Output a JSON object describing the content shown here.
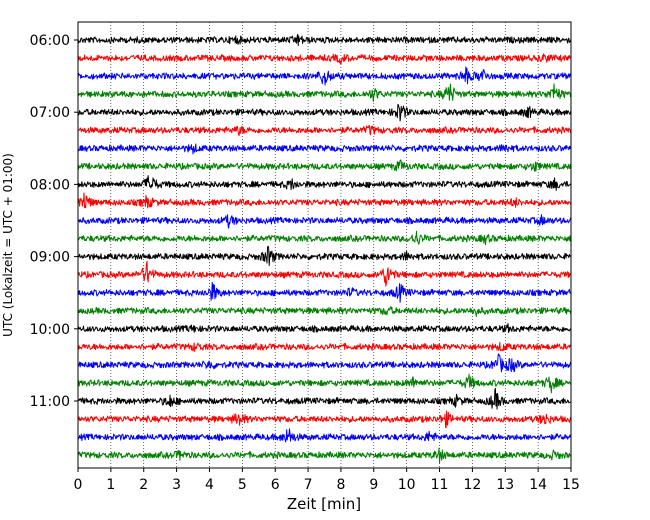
{
  "chart_data": {
    "type": "line",
    "title": "",
    "xlabel": "Zeit  [min]",
    "ylabel": "UTC (Lokalzeit = UTC + 01:00)",
    "xlim": [
      0,
      15
    ],
    "x_ticks": [
      0,
      1,
      2,
      3,
      4,
      5,
      6,
      7,
      8,
      9,
      10,
      11,
      12,
      13,
      14,
      15
    ],
    "x_grid": "dotted vertical lines at every minute",
    "trace_minutes": 15,
    "traces_per_hour": 4,
    "color_cycle": [
      "#000000",
      "#ff0000",
      "#0000ff",
      "#008000"
    ],
    "y_ticks": [
      "06:00",
      "07:00",
      "08:00",
      "09:00",
      "10:00",
      "11:00"
    ],
    "traces": [
      {
        "start": "06:00",
        "color": "#000000",
        "events": [
          {
            "t": 6.7,
            "amp": 0.4
          },
          {
            "t": 4.8,
            "amp": 0.25
          }
        ]
      },
      {
        "start": "06:15",
        "color": "#ff0000",
        "events": [
          {
            "t": 8.0,
            "amp": 0.35
          },
          {
            "t": 14.2,
            "amp": 0.3
          }
        ]
      },
      {
        "start": "06:30",
        "color": "#0000ff",
        "events": [
          {
            "t": 7.5,
            "amp": 0.9
          },
          {
            "t": 11.8,
            "amp": 0.7
          },
          {
            "t": 12.3,
            "amp": 0.6
          }
        ]
      },
      {
        "start": "06:45",
        "color": "#008000",
        "events": [
          {
            "t": 11.3,
            "amp": 1.0
          },
          {
            "t": 14.5,
            "amp": 0.9
          },
          {
            "t": 9.0,
            "amp": 0.5
          }
        ]
      },
      {
        "start": "07:00",
        "color": "#000000",
        "events": [
          {
            "t": 9.8,
            "amp": 0.9
          },
          {
            "t": 13.7,
            "amp": 0.4
          }
        ]
      },
      {
        "start": "07:15",
        "color": "#ff0000",
        "events": [
          {
            "t": 4.9,
            "amp": 0.3
          },
          {
            "t": 8.9,
            "amp": 0.3
          }
        ]
      },
      {
        "start": "07:30",
        "color": "#0000ff",
        "events": [
          {
            "t": 3.5,
            "amp": 0.3
          },
          {
            "t": 13.0,
            "amp": 0.3
          }
        ]
      },
      {
        "start": "07:45",
        "color": "#008000",
        "events": [
          {
            "t": 9.8,
            "amp": 0.4
          },
          {
            "t": 13.9,
            "amp": 0.35
          }
        ]
      },
      {
        "start": "08:00",
        "color": "#000000",
        "events": [
          {
            "t": 2.2,
            "amp": 1.0
          },
          {
            "t": 6.5,
            "amp": 0.4
          },
          {
            "t": 14.5,
            "amp": 0.4
          }
        ]
      },
      {
        "start": "08:15",
        "color": "#ff0000",
        "events": [
          {
            "t": 0.2,
            "amp": 0.9
          },
          {
            "t": 2.1,
            "amp": 0.5
          },
          {
            "t": 13.3,
            "amp": 0.3
          }
        ]
      },
      {
        "start": "08:30",
        "color": "#0000ff",
        "events": [
          {
            "t": 4.6,
            "amp": 0.5
          },
          {
            "t": 14.1,
            "amp": 0.3
          }
        ]
      },
      {
        "start": "08:45",
        "color": "#008000",
        "events": [
          {
            "t": 10.3,
            "amp": 0.6
          },
          {
            "t": 12.4,
            "amp": 0.3
          }
        ]
      },
      {
        "start": "09:00",
        "color": "#000000",
        "events": [
          {
            "t": 5.8,
            "amp": 0.9
          },
          {
            "t": 10.0,
            "amp": 0.3
          }
        ]
      },
      {
        "start": "09:15",
        "color": "#ff0000",
        "events": [
          {
            "t": 2.1,
            "amp": 1.0
          },
          {
            "t": 9.4,
            "amp": 1.1
          }
        ]
      },
      {
        "start": "09:30",
        "color": "#0000ff",
        "events": [
          {
            "t": 4.1,
            "amp": 0.8
          },
          {
            "t": 9.8,
            "amp": 0.7
          },
          {
            "t": 8.3,
            "amp": 0.3
          }
        ]
      },
      {
        "start": "09:45",
        "color": "#008000",
        "events": [
          {
            "t": 9.4,
            "amp": 0.3
          },
          {
            "t": 12.1,
            "amp": 0.3
          }
        ]
      },
      {
        "start": "10:00",
        "color": "#000000",
        "events": [
          {
            "t": 3.5,
            "amp": 0.2
          },
          {
            "t": 13.1,
            "amp": 0.2
          }
        ]
      },
      {
        "start": "10:15",
        "color": "#ff0000",
        "events": [
          {
            "t": 3.6,
            "amp": 0.3
          },
          {
            "t": 12.9,
            "amp": 0.3
          }
        ]
      },
      {
        "start": "10:30",
        "color": "#0000ff",
        "events": [
          {
            "t": 12.8,
            "amp": 0.8
          },
          {
            "t": 13.2,
            "amp": 0.6
          },
          {
            "t": 4.0,
            "amp": 0.3
          }
        ]
      },
      {
        "start": "10:45",
        "color": "#008000",
        "events": [
          {
            "t": 14.4,
            "amp": 0.7
          },
          {
            "t": 11.9,
            "amp": 0.6
          },
          {
            "t": 10.2,
            "amp": 0.4
          }
        ]
      },
      {
        "start": "11:00",
        "color": "#000000",
        "events": [
          {
            "t": 12.7,
            "amp": 0.9
          },
          {
            "t": 2.8,
            "amp": 0.5
          },
          {
            "t": 11.5,
            "amp": 0.4
          }
        ]
      },
      {
        "start": "11:15",
        "color": "#ff0000",
        "events": [
          {
            "t": 4.9,
            "amp": 0.6
          },
          {
            "t": 11.2,
            "amp": 0.6
          },
          {
            "t": 14.2,
            "amp": 0.5
          }
        ]
      },
      {
        "start": "11:30",
        "color": "#0000ff",
        "events": [
          {
            "t": 6.4,
            "amp": 0.8
          },
          {
            "t": 10.7,
            "amp": 0.4
          }
        ]
      },
      {
        "start": "11:45",
        "color": "#008000",
        "events": [
          {
            "t": 11.0,
            "amp": 0.5
          },
          {
            "t": 3.1,
            "amp": 0.3
          },
          {
            "t": 14.5,
            "amp": 0.3
          }
        ]
      }
    ]
  }
}
